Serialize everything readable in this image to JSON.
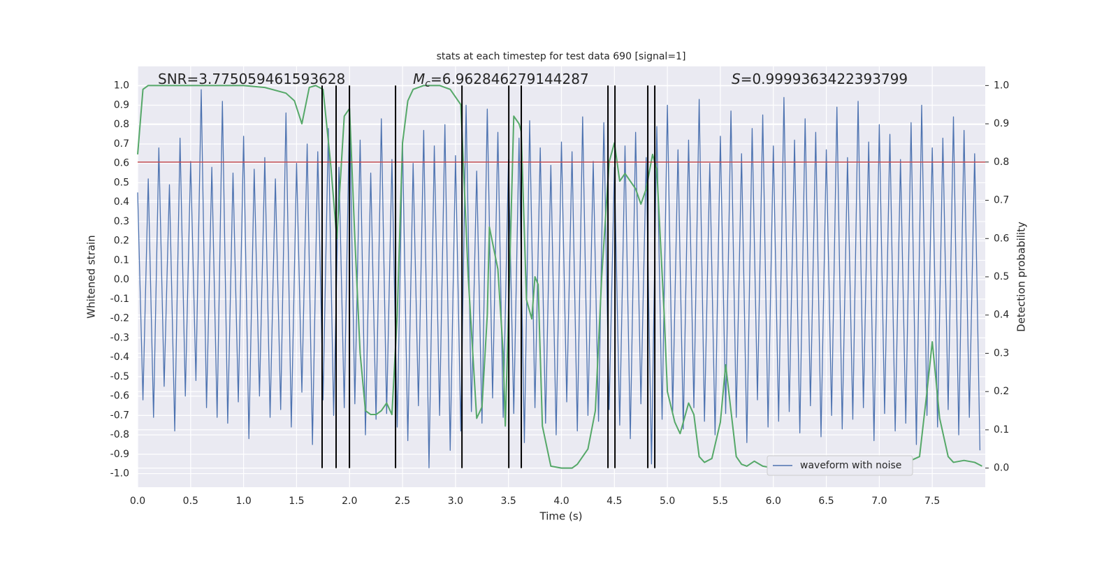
{
  "chart_data": {
    "type": "line",
    "title": "stats at each timestep for test data 690 [signal=1]",
    "xlabel": "Time (s)",
    "ylabel": "Whitened strain",
    "y2label": "Detection probability",
    "xlim": [
      0,
      8
    ],
    "ylim": [
      -1.07,
      1.1
    ],
    "y2lim": [
      -0.05,
      1.05
    ],
    "xticks": [
      {
        "value": 0,
        "label": "0.0"
      },
      0.5,
      {
        "value": 1,
        "label": "1.0"
      },
      1.5,
      {
        "value": 2,
        "label": "2.0"
      },
      2.5,
      {
        "value": 3,
        "label": "3.0"
      },
      3.5,
      {
        "value": 4,
        "label": "4.0"
      },
      4.5,
      {
        "value": 5,
        "label": "5.0"
      },
      5.5,
      {
        "value": 6,
        "label": "6.0"
      },
      6.5,
      {
        "value": 7,
        "label": "7.0"
      },
      7.5
    ],
    "yticks": [
      {
        "value": -1,
        "label": "-1.0"
      },
      -0.9,
      -0.8,
      -0.7,
      -0.6,
      -0.5,
      -0.4,
      -0.3,
      -0.2,
      -0.1,
      {
        "value": 0,
        "label": "0.0"
      },
      0.1,
      0.2,
      0.3,
      0.4,
      0.5,
      0.6,
      0.7,
      0.8,
      0.9,
      {
        "value": 1,
        "label": "1.0"
      }
    ],
    "y2ticks": [
      {
        "value": 0,
        "label": "0.0"
      },
      0.1,
      0.2,
      0.3,
      0.4,
      0.5,
      0.6,
      0.7,
      0.8,
      0.9,
      {
        "value": 1,
        "label": "1.0"
      }
    ],
    "grid": true,
    "legend": "lower right",
    "series": [
      {
        "name": "waveform with noise",
        "color": "#4c72b0",
        "x": [
          0,
          0.05,
          0.1,
          0.15,
          0.2,
          0.25,
          0.3,
          0.35,
          0.4,
          0.45,
          0.5,
          0.55,
          0.6,
          0.65,
          0.7,
          0.75,
          0.8,
          0.85,
          0.9,
          0.95,
          1,
          1.05,
          1.1,
          1.15,
          1.2,
          1.25,
          1.3,
          1.35,
          1.4,
          1.45,
          1.5,
          1.55,
          1.6,
          1.65,
          1.7,
          1.75,
          1.8,
          1.85,
          1.9,
          1.95,
          2,
          2.05,
          2.1,
          2.15,
          2.2,
          2.25,
          2.3,
          2.35,
          2.4,
          2.45,
          2.5,
          2.55,
          2.6,
          2.65,
          2.7,
          2.75,
          2.8,
          2.85,
          2.9,
          2.95,
          3,
          3.05,
          3.1,
          3.15,
          3.2,
          3.25,
          3.3,
          3.35,
          3.4,
          3.45,
          3.5,
          3.55,
          3.6,
          3.65,
          3.7,
          3.75,
          3.8,
          3.85,
          3.9,
          3.95,
          4,
          4.05,
          4.1,
          4.15,
          4.2,
          4.25,
          4.3,
          4.35,
          4.4,
          4.45,
          4.5,
          4.55,
          4.6,
          4.65,
          4.7,
          4.75,
          4.8,
          4.85,
          4.9,
          4.95,
          5,
          5.05,
          5.1,
          5.15,
          5.2,
          5.25,
          5.3,
          5.35,
          5.4,
          5.45,
          5.5,
          5.55,
          5.6,
          5.65,
          5.7,
          5.75,
          5.8,
          5.85,
          5.9,
          5.95,
          6,
          6.05,
          6.1,
          6.15,
          6.2,
          6.25,
          6.3,
          6.35,
          6.4,
          6.45,
          6.5,
          6.55,
          6.6,
          6.65,
          6.7,
          6.75,
          6.8,
          6.85,
          6.9,
          6.95,
          7,
          7.05,
          7.1,
          7.15,
          7.2,
          7.25,
          7.3,
          7.35,
          7.4,
          7.45,
          7.5,
          7.55,
          7.6,
          7.65,
          7.7,
          7.75,
          7.8,
          7.85,
          7.9,
          7.95
        ],
        "values": [
          0.45,
          -0.62,
          0.52,
          -0.71,
          0.68,
          -0.55,
          0.49,
          -0.78,
          0.73,
          -0.6,
          0.61,
          -0.52,
          0.98,
          -0.66,
          0.58,
          -0.71,
          0.92,
          -0.74,
          0.55,
          -0.63,
          0.74,
          -0.82,
          0.57,
          -0.6,
          0.63,
          -0.71,
          0.52,
          -0.67,
          0.86,
          -0.76,
          0.6,
          -0.58,
          0.7,
          -0.85,
          0.66,
          -0.62,
          0.78,
          -0.7,
          0.58,
          -0.66,
          0.88,
          -0.64,
          0.72,
          -0.8,
          0.55,
          -0.72,
          0.83,
          -0.69,
          0.62,
          -0.76,
          0.71,
          -0.83,
          0.6,
          -0.65,
          0.77,
          -0.97,
          0.69,
          -0.7,
          0.8,
          -0.88,
          0.64,
          -0.78,
          0.9,
          -0.68,
          0.56,
          -0.74,
          0.88,
          -0.61,
          0.76,
          -0.71,
          0.62,
          -0.69,
          0.73,
          -0.84,
          0.82,
          -0.66,
          0.68,
          -0.74,
          0.59,
          -0.8,
          0.71,
          -0.63,
          0.66,
          -0.78,
          0.84,
          -0.7,
          0.61,
          -0.73,
          0.81,
          -0.67,
          0.58,
          -0.75,
          0.69,
          -0.82,
          0.76,
          -0.64,
          0.63,
          -0.95,
          0.79,
          -0.72,
          0.9,
          -0.68,
          0.67,
          -0.77,
          0.72,
          -0.66,
          0.93,
          -0.73,
          0.6,
          -0.8,
          0.74,
          -0.69,
          0.87,
          -0.71,
          0.65,
          -0.84,
          0.78,
          -0.62,
          0.85,
          -0.76,
          0.69,
          -0.73,
          0.94,
          -0.68,
          0.72,
          -0.79,
          0.83,
          -0.65,
          0.76,
          -0.81,
          0.67,
          -0.7,
          0.89,
          -0.77,
          0.63,
          -0.72,
          0.92,
          -0.66,
          0.71,
          -0.83,
          0.8,
          -0.69,
          0.75,
          -0.78,
          0.62,
          -0.74,
          0.81,
          -0.85,
          0.9,
          -0.7,
          0.68,
          -0.76,
          0.73,
          -0.67,
          0.84,
          -0.8,
          0.77,
          -0.71,
          0.65,
          -0.88
        ]
      },
      {
        "color": "#55a868",
        "axis": "y2",
        "x": [
          0,
          0.05,
          0.1,
          1.0,
          1.2,
          1.4,
          1.48,
          1.55,
          1.62,
          1.68,
          1.75,
          1.82,
          1.88,
          1.95,
          2.0,
          2.05,
          2.1,
          2.15,
          2.2,
          2.25,
          2.3,
          2.35,
          2.4,
          2.45,
          2.5,
          2.55,
          2.6,
          2.7,
          2.85,
          2.95,
          3.05,
          3.12,
          3.2,
          3.25,
          3.3,
          3.32,
          3.4,
          3.45,
          3.47,
          3.5,
          3.55,
          3.6,
          3.62,
          3.67,
          3.72,
          3.75,
          3.78,
          3.82,
          3.9,
          4.0,
          4.1,
          4.15,
          4.25,
          4.32,
          4.38,
          4.45,
          4.5,
          4.55,
          4.6,
          4.7,
          4.75,
          4.8,
          4.86,
          4.9,
          4.97,
          5.0,
          5.07,
          5.12,
          5.2,
          5.25,
          5.3,
          5.35,
          5.42,
          5.5,
          5.55,
          5.65,
          5.7,
          5.75,
          5.82,
          5.9,
          6.0,
          6.1,
          6.2,
          6.3,
          6.4,
          6.5,
          6.6,
          6.7,
          6.8,
          6.9,
          7.0,
          7.1,
          7.2,
          7.3,
          7.38,
          7.45,
          7.5,
          7.57,
          7.65,
          7.7,
          7.8,
          7.9,
          7.97
        ],
        "values": [
          0.82,
          0.99,
          1.0,
          1.0,
          0.995,
          0.98,
          0.96,
          0.9,
          0.995,
          1.0,
          0.99,
          0.8,
          0.6,
          0.92,
          0.94,
          0.6,
          0.3,
          0.15,
          0.14,
          0.14,
          0.15,
          0.17,
          0.14,
          0.4,
          0.85,
          0.96,
          0.99,
          1.0,
          1.0,
          0.99,
          0.95,
          0.5,
          0.13,
          0.16,
          0.4,
          0.63,
          0.52,
          0.3,
          0.11,
          0.4,
          0.92,
          0.9,
          0.88,
          0.44,
          0.39,
          0.5,
          0.48,
          0.11,
          0.005,
          0.0,
          0.0,
          0.01,
          0.05,
          0.15,
          0.5,
          0.8,
          0.85,
          0.75,
          0.77,
          0.73,
          0.69,
          0.73,
          0.82,
          0.78,
          0.4,
          0.2,
          0.12,
          0.09,
          0.17,
          0.14,
          0.03,
          0.015,
          0.025,
          0.12,
          0.27,
          0.03,
          0.01,
          0.005,
          0.018,
          0.005,
          0.0,
          0.003,
          0.0,
          0.003,
          0.005,
          0.0,
          0.01,
          0.003,
          0.005,
          0.0,
          0.005,
          0.012,
          0.005,
          0.02,
          0.03,
          0.2,
          0.33,
          0.13,
          0.03,
          0.015,
          0.02,
          0.015,
          0.005
        ]
      }
    ],
    "hlines": [
      {
        "value": 0.8,
        "axis": "y2",
        "color": "#c44e52"
      }
    ],
    "vlines": {
      "values": [
        1.741,
        1.873,
        1.999,
        2.434,
        3.061,
        3.503,
        3.621,
        4.439,
        4.505,
        4.815,
        4.881
      ],
      "ymin": 0,
      "ymax": 1,
      "axis": "y2",
      "color": "#000000"
    },
    "annotations": [
      {
        "parts": [
          "SNR=3.775059461593628"
        ]
      },
      {
        "parts": [
          "M",
          "c",
          "=6.962846279144287"
        ]
      },
      {
        "parts": [
          "S",
          "=0.9999363422393799"
        ]
      }
    ]
  }
}
